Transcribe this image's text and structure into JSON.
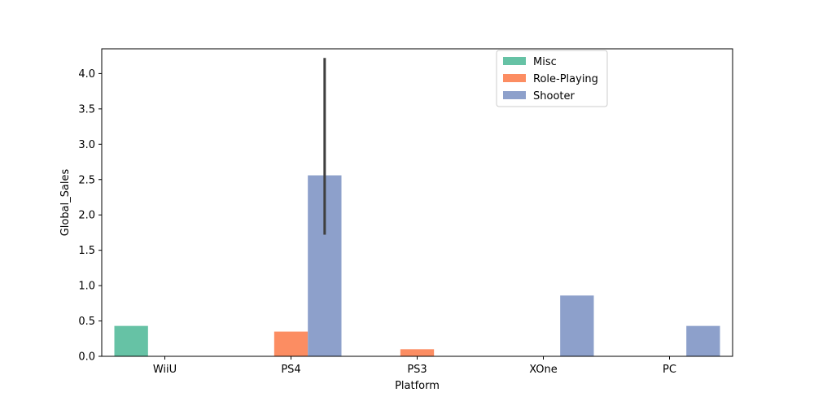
{
  "chart_data": {
    "type": "bar",
    "title": "",
    "xlabel": "Platform",
    "ylabel": "Global_Sales",
    "categories": [
      "WiiU",
      "PS4",
      "PS3",
      "XOne",
      "PC"
    ],
    "ylim": [
      0,
      4.35
    ],
    "yticks": [
      "0.0",
      "0.5",
      "1.0",
      "1.5",
      "2.0",
      "2.5",
      "3.0",
      "3.5",
      "4.0"
    ],
    "grid": false,
    "legend_position": "top-right",
    "series": [
      {
        "name": "Misc",
        "color": "#66c2a5",
        "values": [
          0.43,
          0,
          0,
          0,
          0
        ]
      },
      {
        "name": "Role-Playing",
        "color": "#fc8d62",
        "values": [
          0,
          0.35,
          0.1,
          0,
          0
        ]
      },
      {
        "name": "Shooter",
        "color": "#8da0cb",
        "values": [
          0,
          2.56,
          0,
          0.86,
          0.43
        ]
      }
    ],
    "error_bars": [
      {
        "series": "Shooter",
        "category": "PS4",
        "low": 1.72,
        "high": 4.22,
        "color": "#3f3f3f"
      }
    ]
  }
}
